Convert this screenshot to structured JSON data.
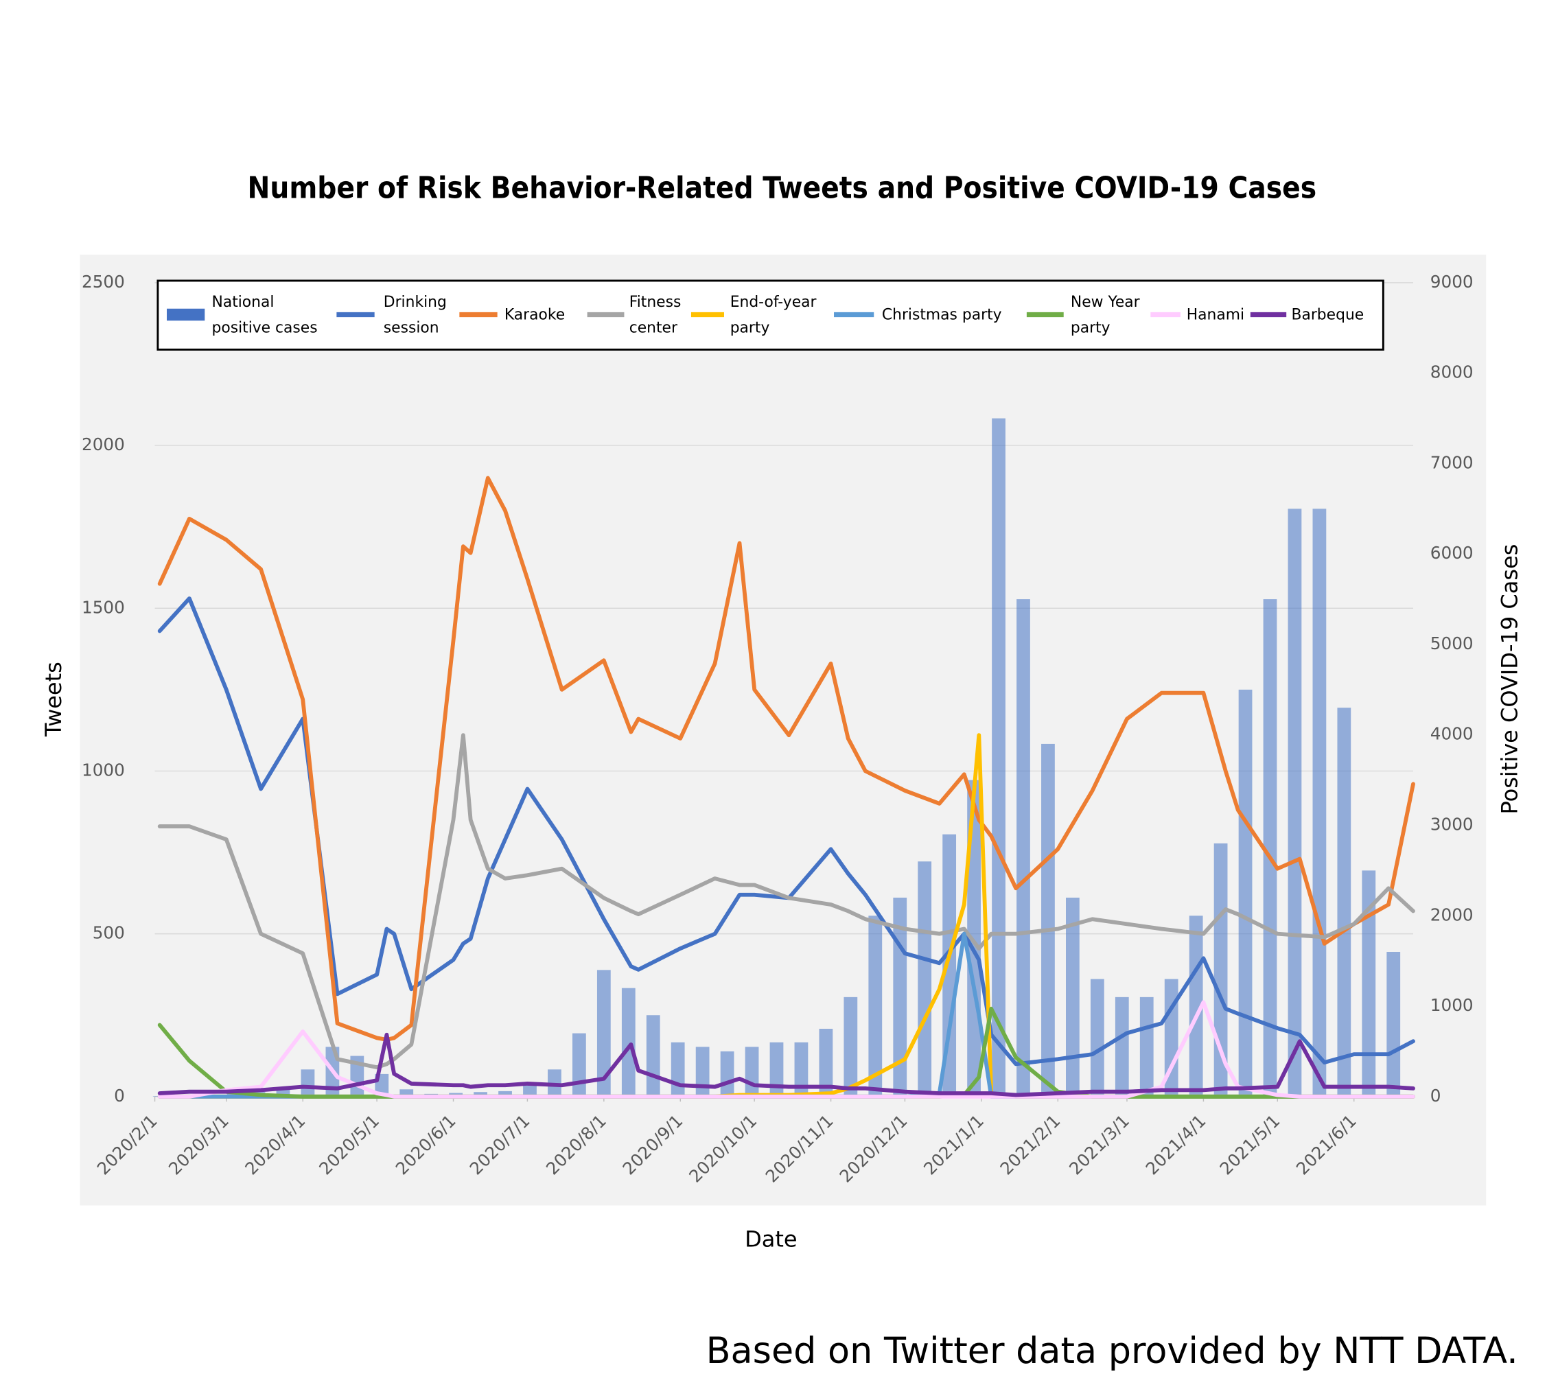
{
  "chart_data": {
    "type": "line",
    "title": "Number of Risk Behavior-Related Tweets and Positive COVID-19 Cases",
    "xlabel": "Date",
    "ylabel": "Tweets",
    "y2label": "Positive COVID-19 Cases",
    "source": "Based on Twitter data provided by NTT DATA.",
    "xlim": [
      "2020-02-01",
      "2021-06-25"
    ],
    "xticks": [
      {
        "value": "2020-02-01",
        "label": "2020/2/1"
      },
      {
        "value": "2020-03-01",
        "label": "2020/3/1"
      },
      {
        "value": "2020-04-01",
        "label": "2020/4/1"
      },
      {
        "value": "2020-05-01",
        "label": "2020/5/1"
      },
      {
        "value": "2020-06-01",
        "label": "2020/6/1"
      },
      {
        "value": "2020-07-01",
        "label": "2020/7/1"
      },
      {
        "value": "2020-08-01",
        "label": "2020/8/1"
      },
      {
        "value": "2020-09-01",
        "label": "2020/9/1"
      },
      {
        "value": "2020-10-01",
        "label": "2020/10/1"
      },
      {
        "value": "2020-11-01",
        "label": "2020/11/1"
      },
      {
        "value": "2020-12-01",
        "label": "2020/12/1"
      },
      {
        "value": "2021-01-01",
        "label": "2021/1/1"
      },
      {
        "value": "2021-02-01",
        "label": "2021/2/1"
      },
      {
        "value": "2021-03-01",
        "label": "2021/3/1"
      },
      {
        "value": "2021-04-01",
        "label": "2021/4/1"
      },
      {
        "value": "2021-05-01",
        "label": "2021/5/1"
      },
      {
        "value": "2021-06-01",
        "label": "2021/6/1"
      }
    ],
    "ylim": [
      0,
      2500
    ],
    "yticks": [
      0,
      500,
      1000,
      1500,
      2000,
      2500
    ],
    "y2lim": [
      0,
      9000
    ],
    "y2ticks": [
      0,
      1000,
      2000,
      3000,
      4000,
      5000,
      6000,
      7000,
      8000,
      9000
    ],
    "grid": true,
    "x": [
      "2020-02-03",
      "2020-02-15",
      "2020-03-01",
      "2020-03-15",
      "2020-04-01",
      "2020-04-15",
      "2020-05-01",
      "2020-05-05",
      "2020-05-08",
      "2020-05-15",
      "2020-06-01",
      "2020-06-05",
      "2020-06-08",
      "2020-06-15",
      "2020-06-22",
      "2020-07-01",
      "2020-07-15",
      "2020-08-01",
      "2020-08-12",
      "2020-08-15",
      "2020-09-01",
      "2020-09-15",
      "2020-09-25",
      "2020-10-01",
      "2020-10-15",
      "2020-11-01",
      "2020-11-08",
      "2020-11-15",
      "2020-12-01",
      "2020-12-15",
      "2020-12-25",
      "2020-12-31",
      "2021-01-05",
      "2021-01-15",
      "2021-02-01",
      "2021-02-15",
      "2021-03-01",
      "2021-03-15",
      "2021-04-01",
      "2021-04-10",
      "2021-04-15",
      "2021-05-01",
      "2021-05-10",
      "2021-05-20",
      "2021-06-01",
      "2021-06-15",
      "2021-06-25"
    ],
    "series": [
      {
        "name": "National positive cases",
        "type": "bar",
        "axis": "y2",
        "color": "#4472c4",
        "x": [
          "2020-02-03",
          "2020-02-13",
          "2020-02-23",
          "2020-03-04",
          "2020-03-14",
          "2020-03-24",
          "2020-04-03",
          "2020-04-13",
          "2020-04-23",
          "2020-05-03",
          "2020-05-13",
          "2020-05-23",
          "2020-06-02",
          "2020-06-12",
          "2020-06-22",
          "2020-07-02",
          "2020-07-12",
          "2020-07-22",
          "2020-08-01",
          "2020-08-11",
          "2020-08-21",
          "2020-08-31",
          "2020-09-10",
          "2020-09-20",
          "2020-09-30",
          "2020-10-10",
          "2020-10-20",
          "2020-10-30",
          "2020-11-09",
          "2020-11-19",
          "2020-11-29",
          "2020-12-09",
          "2020-12-19",
          "2020-12-29",
          "2021-01-08",
          "2021-01-18",
          "2021-01-28",
          "2021-02-07",
          "2021-02-17",
          "2021-02-27",
          "2021-03-09",
          "2021-03-19",
          "2021-03-29",
          "2021-04-08",
          "2021-04-18",
          "2021-04-28",
          "2021-05-08",
          "2021-05-18",
          "2021-05-28",
          "2021-06-07",
          "2021-06-17"
        ],
        "values": [
          5,
          10,
          20,
          40,
          50,
          100,
          300,
          550,
          450,
          250,
          80,
          30,
          40,
          50,
          60,
          150,
          300,
          700,
          1400,
          1200,
          900,
          600,
          550,
          500,
          550,
          600,
          600,
          750,
          1100,
          2000,
          2200,
          2600,
          2900,
          3500,
          7500,
          5500,
          3900,
          2200,
          1300,
          1100,
          1100,
          1300,
          2000,
          2800,
          4500,
          5500,
          6500,
          6500,
          4300,
          2500,
          1600
        ]
      },
      {
        "name": "Drinking session",
        "color": "#4472c4",
        "values": [
          1430,
          1530,
          1250,
          945,
          1160,
          315,
          375,
          515,
          500,
          330,
          420,
          470,
          485,
          670,
          790,
          945,
          790,
          545,
          400,
          390,
          455,
          500,
          620,
          620,
          610,
          760,
          685,
          620,
          440,
          410,
          500,
          420,
          190,
          100,
          115,
          130,
          195,
          225,
          425,
          270,
          255,
          210,
          190,
          105,
          130,
          130,
          170
        ]
      },
      {
        "name": "Karaoke",
        "color": "#ed7d31",
        "values": [
          1575,
          1775,
          1710,
          1620,
          1220,
          225,
          180,
          175,
          180,
          220,
          1400,
          1690,
          1670,
          1900,
          1800,
          1590,
          1250,
          1340,
          1120,
          1160,
          1100,
          1330,
          1700,
          1250,
          1110,
          1330,
          1100,
          1000,
          940,
          900,
          990,
          850,
          800,
          640,
          760,
          940,
          1160,
          1240,
          1240,
          1000,
          880,
          700,
          730,
          470,
          530,
          590,
          960
        ]
      },
      {
        "name": "Fitness center",
        "color": "#a5a5a5",
        "values": [
          830,
          830,
          790,
          500,
          440,
          115,
          90,
          100,
          115,
          160,
          850,
          1110,
          850,
          700,
          670,
          680,
          700,
          610,
          570,
          560,
          620,
          670,
          650,
          650,
          610,
          590,
          570,
          545,
          515,
          500,
          515,
          455,
          500,
          500,
          515,
          545,
          530,
          515,
          500,
          575,
          560,
          500,
          495,
          490,
          530,
          640,
          570
        ]
      },
      {
        "name": "End-of-year party",
        "color": "#ffc000",
        "values": [
          0,
          0,
          0,
          0,
          0,
          0,
          0,
          0,
          0,
          0,
          0,
          0,
          0,
          0,
          0,
          0,
          0,
          0,
          0,
          0,
          0,
          0,
          5,
          5,
          5,
          10,
          25,
          50,
          115,
          330,
          590,
          1110,
          10,
          0,
          0,
          0,
          0,
          0,
          0,
          0,
          0,
          0,
          0,
          0,
          0,
          0,
          0
        ]
      },
      {
        "name": "Christmas party",
        "color": "#5b9bd5",
        "values": [
          0,
          0,
          0,
          0,
          0,
          0,
          0,
          0,
          0,
          0,
          0,
          0,
          0,
          0,
          0,
          0,
          0,
          0,
          0,
          0,
          0,
          0,
          0,
          0,
          0,
          0,
          0,
          0,
          0,
          10,
          500,
          250,
          0,
          0,
          0,
          0,
          0,
          0,
          0,
          0,
          0,
          0,
          0,
          0,
          0,
          0,
          0
        ]
      },
      {
        "name": "New Year party",
        "color": "#70ad47",
        "values": [
          220,
          110,
          15,
          5,
          0,
          0,
          0,
          0,
          0,
          0,
          0,
          0,
          0,
          0,
          0,
          0,
          0,
          0,
          0,
          0,
          0,
          0,
          0,
          0,
          0,
          0,
          0,
          0,
          0,
          0,
          5,
          60,
          270,
          120,
          15,
          0,
          0,
          0,
          0,
          0,
          0,
          0,
          0,
          0,
          0,
          0,
          0
        ]
      },
      {
        "name": "Hanami",
        "color": "#ffccff",
        "values": [
          0,
          0,
          20,
          30,
          200,
          60,
          10,
          5,
          0,
          0,
          0,
          0,
          0,
          0,
          0,
          0,
          0,
          0,
          0,
          0,
          0,
          0,
          0,
          0,
          0,
          0,
          0,
          0,
          0,
          0,
          0,
          0,
          0,
          0,
          0,
          0,
          0,
          30,
          290,
          100,
          30,
          5,
          0,
          0,
          0,
          0,
          0
        ]
      },
      {
        "name": "Barbeque",
        "color": "#7030a0",
        "values": [
          10,
          15,
          15,
          20,
          30,
          25,
          50,
          190,
          70,
          40,
          35,
          35,
          30,
          35,
          35,
          40,
          35,
          55,
          160,
          80,
          35,
          30,
          55,
          35,
          30,
          30,
          25,
          25,
          15,
          10,
          10,
          10,
          10,
          5,
          10,
          15,
          15,
          20,
          20,
          25,
          25,
          30,
          170,
          30,
          30,
          30,
          25
        ]
      }
    ]
  }
}
